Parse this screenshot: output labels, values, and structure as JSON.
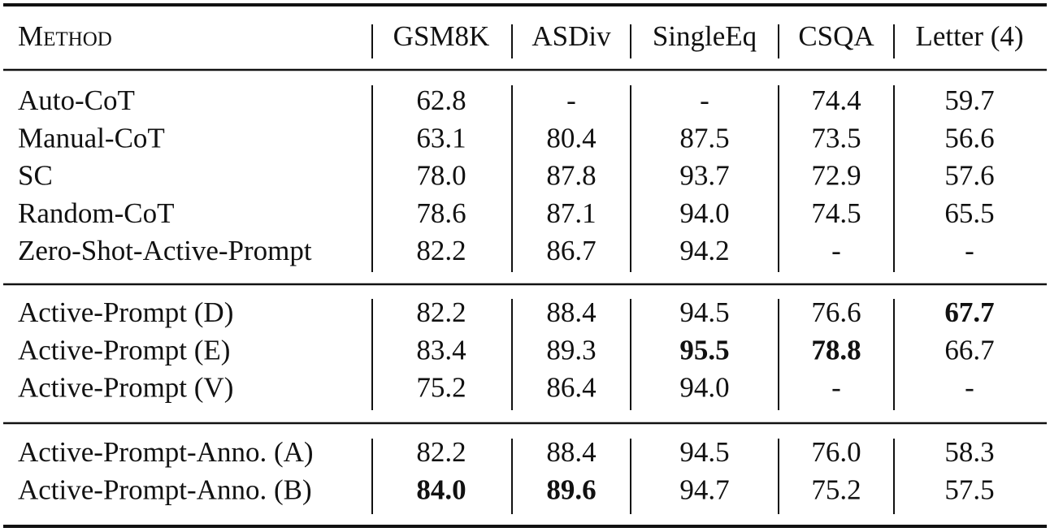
{
  "header": {
    "method": "Method",
    "columns": [
      "GSM8K",
      "ASDiv",
      "SingleEq",
      "CSQA",
      "Letter (4)"
    ]
  },
  "groups": [
    {
      "rows": [
        {
          "method": "Auto-CoT",
          "cells": [
            "62.8",
            "-",
            "-",
            "74.4",
            "59.7"
          ]
        },
        {
          "method": "Manual-CoT",
          "cells": [
            "63.1",
            "80.4",
            "87.5",
            "73.5",
            "56.6"
          ]
        },
        {
          "method": "SC",
          "cells": [
            "78.0",
            "87.8",
            "93.7",
            "72.9",
            "57.6"
          ]
        },
        {
          "method": "Random-CoT",
          "cells": [
            "78.6",
            "87.1",
            "94.0",
            "74.5",
            "65.5"
          ]
        },
        {
          "method": "Zero-Shot-Active-Prompt",
          "cells": [
            "82.2",
            "86.7",
            "94.2",
            "-",
            "-"
          ]
        }
      ]
    },
    {
      "rows": [
        {
          "method": "Active-Prompt (D)",
          "cells": [
            "82.2",
            "88.4",
            "94.5",
            "76.6",
            "67.7"
          ],
          "bold": [
            4
          ]
        },
        {
          "method": "Active-Prompt (E)",
          "cells": [
            "83.4",
            "89.3",
            "95.5",
            "78.8",
            "66.7"
          ],
          "bold": [
            2,
            3
          ]
        },
        {
          "method": "Active-Prompt (V)",
          "cells": [
            "75.2",
            "86.4",
            "94.0",
            "-",
            "-"
          ]
        }
      ]
    },
    {
      "rows": [
        {
          "method": "Active-Prompt-Anno. (A)",
          "cells": [
            "82.2",
            "88.4",
            "94.5",
            "76.0",
            "58.3"
          ]
        },
        {
          "method": "Active-Prompt-Anno. (B)",
          "cells": [
            "84.0",
            "89.6",
            "94.7",
            "75.2",
            "57.5"
          ],
          "bold": [
            0,
            1
          ]
        }
      ]
    }
  ]
}
